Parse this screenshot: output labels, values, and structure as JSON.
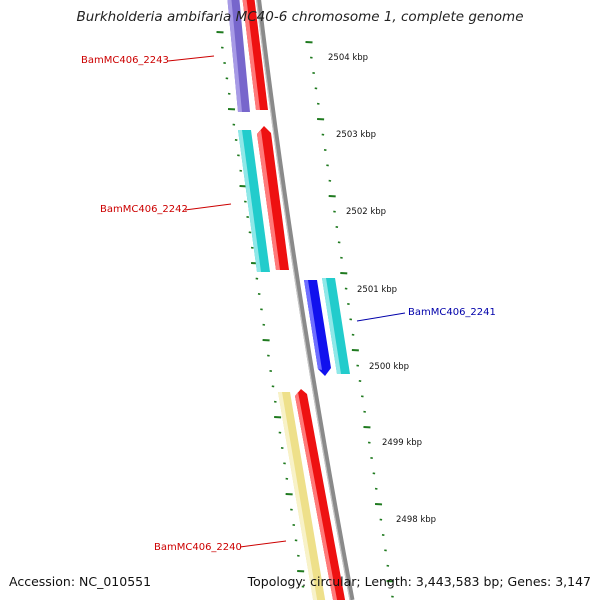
{
  "title": "Burkholderia ambifaria MC40-6 chromosome 1, complete genome",
  "accession": "Accession: NC_010551",
  "summary": "Topology: circular; Length: 3,443,583 bp; Genes: 3,147",
  "colors": {
    "backbone": "#8a8a8a",
    "tick": "#1f7a1f",
    "forward_label": "#cc0000",
    "reverse_label": "#0000aa",
    "cds_red": "#ee1111",
    "cds_cyan": "#22cccc",
    "cds_purple": "#7766cc",
    "cds_blue": "#1111ee",
    "cds_yellow": "#eee08a"
  },
  "scale_labels": [
    "2504 kbp",
    "2503 kbp",
    "2502 kbp",
    "2501 kbp",
    "2500 kbp",
    "2499 kbp",
    "2498 kbp"
  ],
  "genes": [
    {
      "name": "BamMC406_2243",
      "strand": "forward"
    },
    {
      "name": "BamMC406_2242",
      "strand": "forward"
    },
    {
      "name": "BamMC406_2241",
      "strand": "reverse"
    },
    {
      "name": "BamMC406_2240",
      "strand": "forward"
    }
  ]
}
